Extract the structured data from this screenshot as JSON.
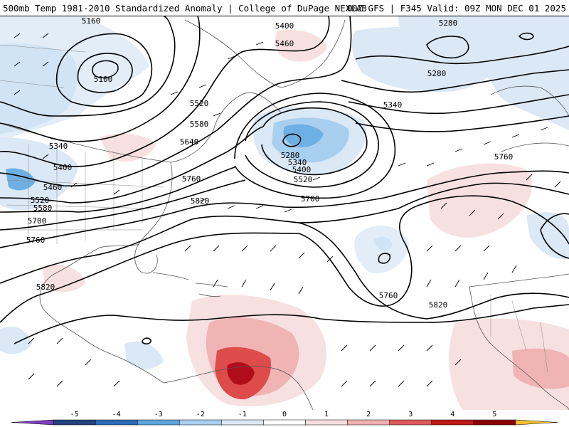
{
  "header": {
    "title_left": "500mb Temp 1981-2010 Standardized Anomaly | College of DuPage NEXLAB",
    "title_right": "00Z GFS | F345 Valid: 09Z MON DEC 01 2025"
  },
  "contour_labels": [
    {
      "id": "c1",
      "text": "5160"
    },
    {
      "id": "c2",
      "text": "5100"
    },
    {
      "id": "c3",
      "text": "5400"
    },
    {
      "id": "c4",
      "text": "5460"
    },
    {
      "id": "c5",
      "text": "5280"
    },
    {
      "id": "c6",
      "text": "5280"
    },
    {
      "id": "c7",
      "text": "5340"
    },
    {
      "id": "c8",
      "text": "5520"
    },
    {
      "id": "c9",
      "text": "5580"
    },
    {
      "id": "c10",
      "text": "5640"
    },
    {
      "id": "c11",
      "text": "5340"
    },
    {
      "id": "c12",
      "text": "5400"
    },
    {
      "id": "c13",
      "text": "5460"
    },
    {
      "id": "c14",
      "text": "5520"
    },
    {
      "id": "c15",
      "text": "5580"
    },
    {
      "id": "c16",
      "text": "5700"
    },
    {
      "id": "c17",
      "text": "5760"
    },
    {
      "id": "c18",
      "text": "5760"
    },
    {
      "id": "c19",
      "text": "5820"
    },
    {
      "id": "c20",
      "text": "5280"
    },
    {
      "id": "c21",
      "text": "5340"
    },
    {
      "id": "c22",
      "text": "5400"
    },
    {
      "id": "c23",
      "text": "5520"
    },
    {
      "id": "c24",
      "text": "5700"
    },
    {
      "id": "c25",
      "text": "5760"
    },
    {
      "id": "c26",
      "text": "5760"
    },
    {
      "id": "c27",
      "text": "5820"
    },
    {
      "id": "c28",
      "text": "5820"
    }
  ],
  "legend": {
    "ticks": [
      "-5",
      "-4",
      "-3",
      "-2",
      "-1",
      "0",
      "1",
      "2",
      "3",
      "4",
      "5"
    ],
    "colors": [
      "#7b3fbf",
      "#23437e",
      "#2c6bb5",
      "#5fa3dc",
      "#a9cff0",
      "#dbe8f6",
      "#ffffff",
      "#f6dede",
      "#efb0b0",
      "#dd5a5a",
      "#c01919",
      "#8b0000",
      "#f5c02e"
    ]
  },
  "colors": {
    "cold_light": "#dbe8f6",
    "cold_mid": "#a9cff0",
    "cold_dark": "#6fb0e4",
    "warm_light": "#f7e0e0",
    "warm_mid": "#f0b4b4",
    "warm_dark": "#dd4b4b",
    "warm_deep": "#b00d1a"
  }
}
